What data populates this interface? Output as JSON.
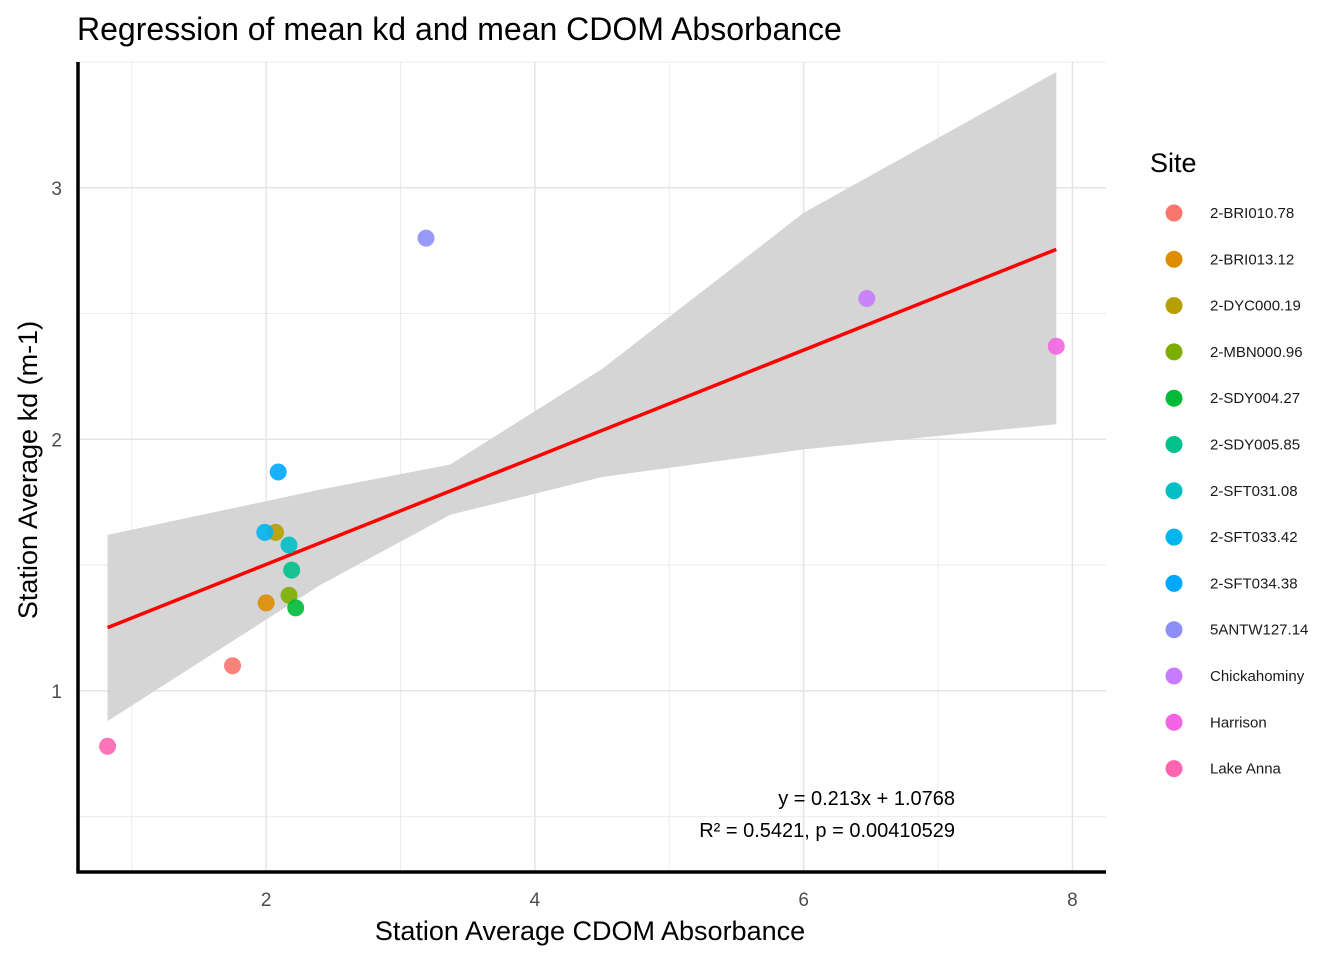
{
  "chart_data": {
    "type": "scatter",
    "title": "Regression of mean kd and mean CDOM Absorbance",
    "xlabel": "Station Average CDOM Absorbance",
    "ylabel": "Station Average kd (m-1)",
    "xlim": [
      0.6,
      8.25
    ],
    "ylim": [
      0.28,
      3.5
    ],
    "x_ticks": [
      2,
      4,
      6,
      8
    ],
    "x_minor": [
      1,
      3,
      5,
      7
    ],
    "y_ticks": [
      1,
      2,
      3
    ],
    "y_minor": [
      1.5,
      2.5,
      0.5,
      3.5
    ],
    "grid": true,
    "legend": {
      "title": "Site",
      "position": "right"
    },
    "points": [
      {
        "site": "2-BRI010.78",
        "x": 1.75,
        "y": 1.1
      },
      {
        "site": "2-BRI013.12",
        "x": 2.0,
        "y": 1.35
      },
      {
        "site": "2-DYC000.19",
        "x": 2.07,
        "y": 1.63
      },
      {
        "site": "2-MBN000.96",
        "x": 2.17,
        "y": 1.38
      },
      {
        "site": "2-SDY004.27",
        "x": 2.22,
        "y": 1.33
      },
      {
        "site": "2-SDY005.85",
        "x": 2.19,
        "y": 1.48
      },
      {
        "site": "2-SFT031.08",
        "x": 2.17,
        "y": 1.58
      },
      {
        "site": "2-SFT033.42",
        "x": 1.99,
        "y": 1.63
      },
      {
        "site": "2-SFT034.38",
        "x": 2.09,
        "y": 1.87
      },
      {
        "site": "5ANTW127.14",
        "x": 3.19,
        "y": 2.8
      },
      {
        "site": "Chickahominy",
        "x": 6.47,
        "y": 2.56
      },
      {
        "site": "Harrison",
        "x": 7.88,
        "y": 2.37
      },
      {
        "site": "Lake Anna",
        "x": 0.82,
        "y": 0.78
      }
    ],
    "sites": [
      {
        "name": "2-BRI010.78",
        "color": "#F8766D"
      },
      {
        "name": "2-BRI013.12",
        "color": "#DE8C00"
      },
      {
        "name": "2-DYC000.19",
        "color": "#B79F00"
      },
      {
        "name": "2-MBN000.96",
        "color": "#7CAE00"
      },
      {
        "name": "2-SDY004.27",
        "color": "#00BA38"
      },
      {
        "name": "2-SDY005.85",
        "color": "#00C08B"
      },
      {
        "name": "2-SFT031.08",
        "color": "#00BFC4"
      },
      {
        "name": "2-SFT033.42",
        "color": "#00B4F0"
      },
      {
        "name": "2-SFT034.38",
        "color": "#00A9FF"
      },
      {
        "name": "5ANTW127.14",
        "color": "#8C8FF8"
      },
      {
        "name": "Chickahominy",
        "color": "#C77CFF"
      },
      {
        "name": "Harrison",
        "color": "#F564E3"
      },
      {
        "name": "Lake Anna",
        "color": "#FF64B0"
      }
    ],
    "regression": {
      "slope": 0.213,
      "intercept": 1.0768,
      "x_range": [
        0.82,
        7.88
      ],
      "line_color": "#FF0000",
      "band_color": "#D3D3D3",
      "band": [
        {
          "x": 0.82,
          "lo": 0.88,
          "hi": 1.62
        },
        {
          "x": 2.4,
          "lo": 1.42,
          "hi": 1.8
        },
        {
          "x": 3.37,
          "lo": 1.7,
          "hi": 1.9
        },
        {
          "x": 4.5,
          "lo": 1.85,
          "hi": 2.28
        },
        {
          "x": 6.0,
          "lo": 1.96,
          "hi": 2.9
        },
        {
          "x": 7.88,
          "lo": 2.06,
          "hi": 3.46
        }
      ]
    },
    "annotations": {
      "equation": "y = 0.213x + 1.0768",
      "stats": "R² = 0.5421, p = 0.00410529"
    }
  }
}
